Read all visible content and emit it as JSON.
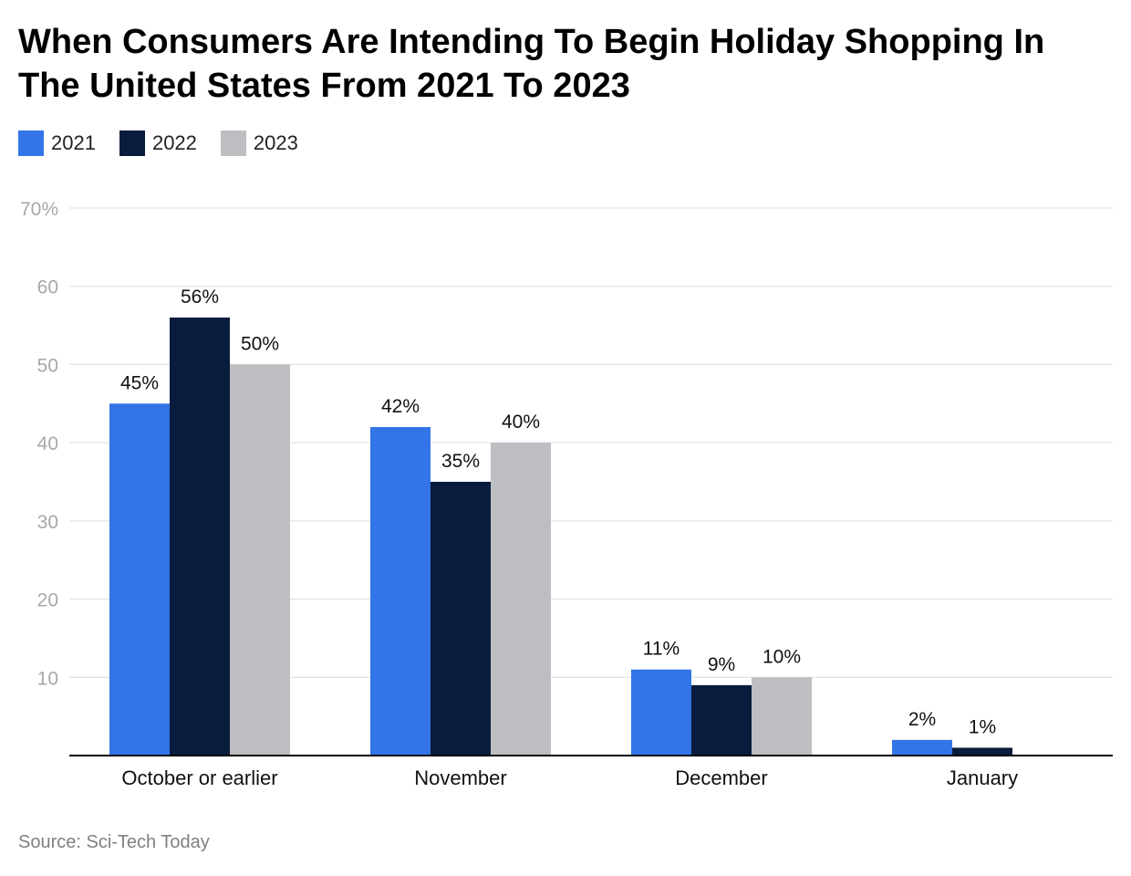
{
  "header": {
    "title": "When Consumers Are Intending To Begin Holiday Shopping In The United States From 2021 To 2023"
  },
  "footer": {
    "source": "Source: Sci-Tech Today"
  },
  "chart_data": {
    "type": "bar",
    "title": "When Consumers Are Intending To Begin Holiday Shopping In The United States From 2021 To 2023",
    "xlabel": "",
    "ylabel": "",
    "categories": [
      "October or earlier",
      "November",
      "December",
      "January"
    ],
    "series": [
      {
        "name": "2021",
        "color": "#3374e6",
        "values": [
          45,
          42,
          11,
          2
        ],
        "labels": [
          "45%",
          "42%",
          "11%",
          "2%"
        ]
      },
      {
        "name": "2022",
        "color": "#0a1c3d",
        "values": [
          56,
          35,
          9,
          1
        ],
        "labels": [
          "56%",
          "35%",
          "9%",
          "1%"
        ]
      },
      {
        "name": "2023",
        "color": "#bdbec2",
        "values": [
          50,
          40,
          10,
          null
        ],
        "labels": [
          "50%",
          "40%",
          "10%",
          ""
        ]
      }
    ],
    "ylim": [
      0,
      70
    ],
    "yticks": [
      10,
      20,
      30,
      40,
      50,
      60,
      70
    ],
    "ytick_labels": [
      "10",
      "20",
      "30",
      "40",
      "50",
      "60",
      "70%"
    ],
    "grid": true,
    "legend_position": "top-left"
  }
}
